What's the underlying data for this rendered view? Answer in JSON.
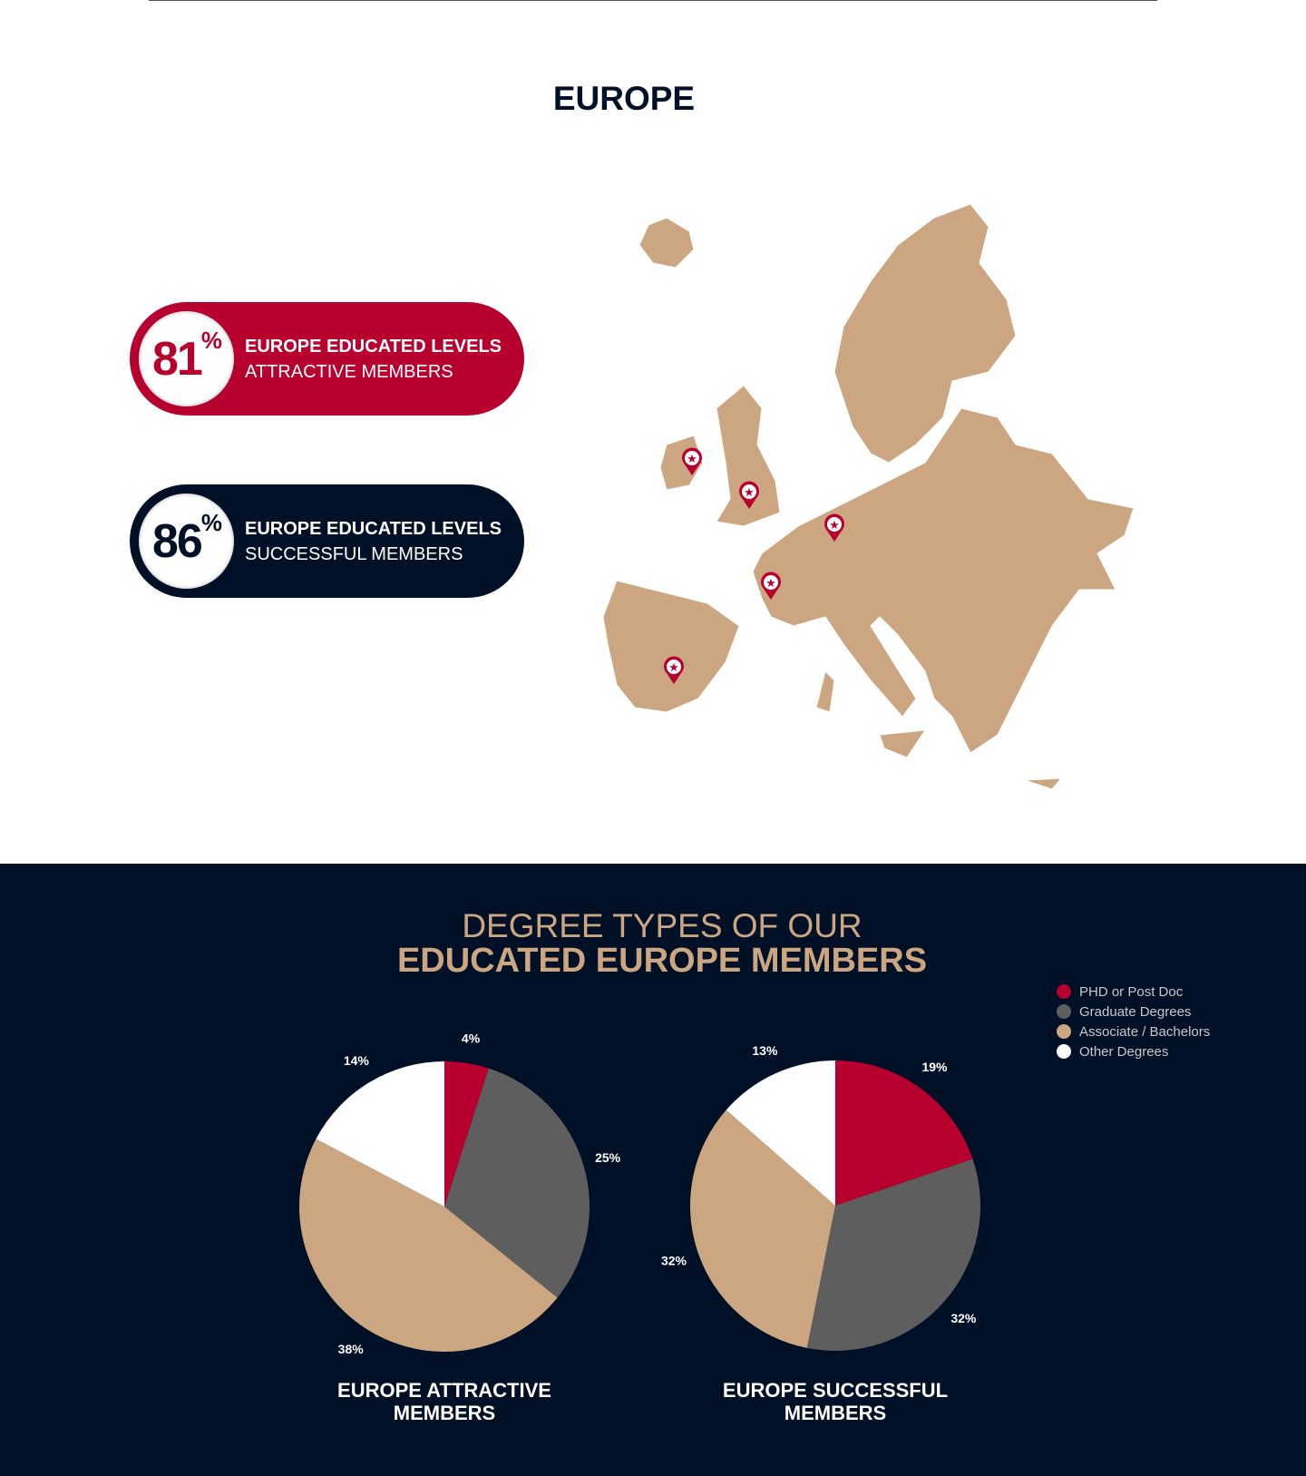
{
  "page": {
    "title": "EUROPE"
  },
  "stats": [
    {
      "value": "81",
      "unit": "%",
      "line1": "EUROPE EDUCATED LEVELS",
      "line2": "ATTRACTIVE MEMBERS",
      "color": "#b8002f"
    },
    {
      "value": "86",
      "unit": "%",
      "line1": "EUROPE EDUCATED LEVELS",
      "line2": "SUCCESSFUL MEMBERS",
      "color": "#001027"
    }
  ],
  "map": {
    "fill": "#cca680",
    "pin_color": "#b8002f",
    "pins": [
      "Ireland",
      "England",
      "Germany",
      "France",
      "Spain"
    ]
  },
  "section": {
    "title_line1": "DEGREE TYPES OF OUR",
    "title_line2": "EDUCATED EUROPE MEMBERS"
  },
  "legend": [
    {
      "label": "PHD or Post Doc",
      "color": "#b8002f"
    },
    {
      "label": "Graduate Degrees",
      "color": "#5e5e5e"
    },
    {
      "label": "Associate / Bachelors",
      "color": "#cca680"
    },
    {
      "label": "Other Degrees",
      "color": "#ffffff"
    }
  ],
  "chart_data": [
    {
      "type": "pie",
      "title": "EUROPE ATTRACTIVE MEMBERS",
      "categories": [
        "PHD or Post Doc",
        "Graduate Degrees",
        "Associate / Bachelors",
        "Other Degrees"
      ],
      "values": [
        4,
        25,
        38,
        14
      ],
      "labels": [
        "4%",
        "25%",
        "38%",
        "14%"
      ]
    },
    {
      "type": "pie",
      "title": "EUROPE SUCCESSFUL MEMBERS",
      "categories": [
        "PHD or Post Doc",
        "Graduate Degrees",
        "Associate / Bachelors",
        "Other Degrees"
      ],
      "values": [
        19,
        32,
        32,
        13
      ],
      "labels": [
        "19%",
        "32%",
        "32%",
        "13%"
      ]
    }
  ]
}
